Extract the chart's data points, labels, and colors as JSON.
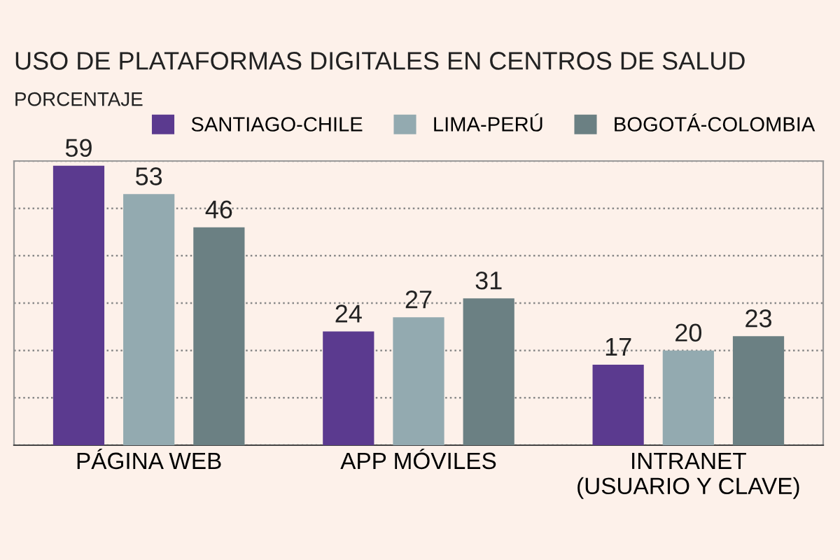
{
  "chart_data": {
    "type": "bar",
    "title": "USO DE PLATAFORMAS DIGITALES EN CENTROS DE SALUD",
    "subtitle": "PORCENTAJE",
    "categories": [
      "PÁGINA WEB",
      "APP MÓVILES",
      "INTRANET\n(USUARIO Y CLAVE)"
    ],
    "series": [
      {
        "name": "SANTIAGO-CHILE",
        "color": "#5b3a8f",
        "values": [
          59,
          24,
          17
        ]
      },
      {
        "name": "LIMA-PERÚ",
        "color": "#93aab0",
        "values": [
          53,
          27,
          20
        ]
      },
      {
        "name": "BOGOTÁ-COLOMBIA",
        "color": "#6b8083",
        "values": [
          46,
          31,
          23
        ]
      }
    ],
    "ylim": [
      0,
      60
    ],
    "yticks": [
      {
        "value": 0,
        "label": null
      },
      {
        "value": 10,
        "label": null
      },
      {
        "value": 20,
        "label": null
      },
      {
        "value": 30,
        "label": null
      },
      {
        "value": 40,
        "label": null
      },
      {
        "value": 50,
        "label": null
      },
      {
        "value": 60,
        "label": null
      }
    ],
    "tick_labels": "x",
    "grid": "y",
    "legend": "top right",
    "data_labels": true
  }
}
